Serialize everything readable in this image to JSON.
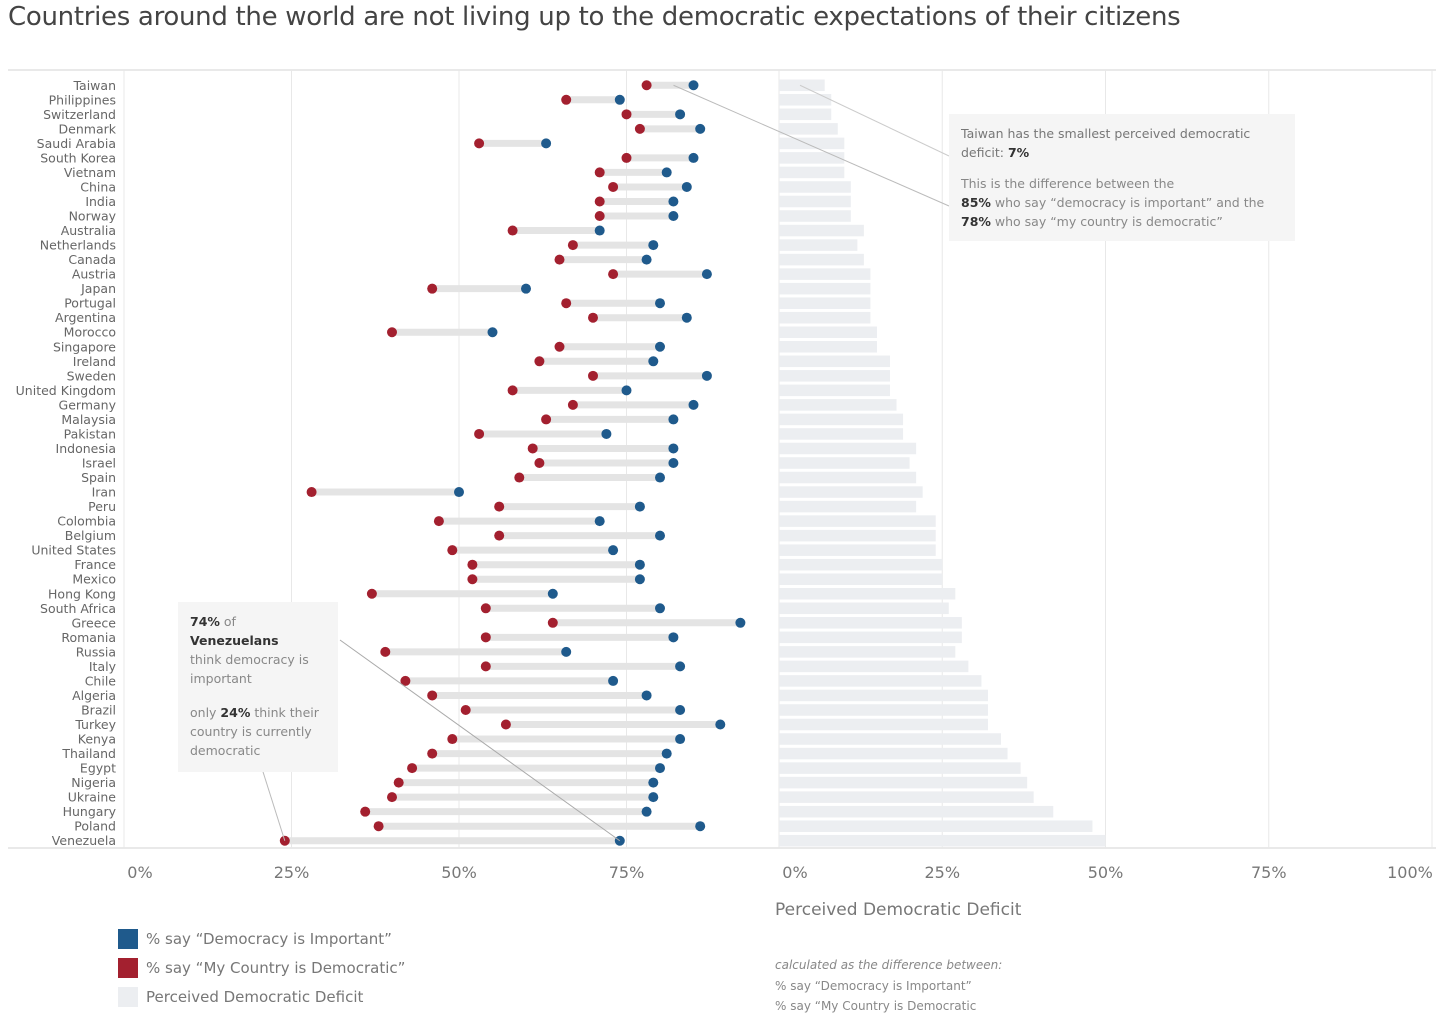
{
  "title": "Countries around the world are not living up to the democratic expectations of their citizens",
  "colors": {
    "important": "#1f5a8c",
    "democratic": "#a3202f",
    "deficit": "#eceef1",
    "connector": "#e4e4e4",
    "grid": "#e8e8e8"
  },
  "chart_data": [
    {
      "type": "dumbbell",
      "title": "",
      "xlabel": "",
      "xlim": [
        0,
        100
      ],
      "x_ticks": [
        "0%",
        "25%",
        "50%",
        "75%"
      ],
      "grid": true,
      "legend_position": "bottom-left",
      "categories": [
        "Taiwan",
        "Philippines",
        "Switzerland",
        "Denmark",
        "Saudi Arabia",
        "South Korea",
        "Vietnam",
        "China",
        "India",
        "Norway",
        "Australia",
        "Netherlands",
        "Canada",
        "Austria",
        "Japan",
        "Portugal",
        "Argentina",
        "Morocco",
        "Singapore",
        "Ireland",
        "Sweden",
        "United Kingdom",
        "Germany",
        "Malaysia",
        "Pakistan",
        "Indonesia",
        "Israel",
        "Spain",
        "Iran",
        "Peru",
        "Colombia",
        "Belgium",
        "United States",
        "France",
        "Mexico",
        "Hong Kong",
        "South Africa",
        "Greece",
        "Romania",
        "Russia",
        "Italy",
        "Chile",
        "Algeria",
        "Brazil",
        "Turkey",
        "Kenya",
        "Thailand",
        "Egypt",
        "Nigeria",
        "Ukraine",
        "Hungary",
        "Poland",
        "Venezuela"
      ],
      "series": [
        {
          "name": "% say \"Democracy is Important\"",
          "key": "important",
          "values": [
            85,
            74,
            83,
            86,
            63,
            85,
            81,
            84,
            82,
            82,
            71,
            79,
            78,
            87,
            60,
            80,
            84,
            55,
            80,
            79,
            87,
            75,
            85,
            82,
            72,
            82,
            82,
            80,
            50,
            77,
            71,
            80,
            73,
            77,
            77,
            64,
            80,
            92,
            82,
            66,
            83,
            73,
            78,
            83,
            89,
            83,
            81,
            80,
            79,
            79,
            78,
            86,
            74
          ]
        },
        {
          "name": "% say \"My Country is Democratic\"",
          "key": "democratic",
          "values": [
            78,
            66,
            75,
            77,
            53,
            75,
            71,
            73,
            71,
            71,
            58,
            67,
            65,
            73,
            46,
            66,
            70,
            40,
            65,
            62,
            70,
            58,
            67,
            63,
            53,
            61,
            62,
            59,
            28,
            56,
            47,
            56,
            49,
            52,
            52,
            37,
            54,
            64,
            54,
            39,
            54,
            42,
            46,
            51,
            57,
            49,
            46,
            43,
            41,
            40,
            36,
            38,
            24
          ]
        }
      ]
    },
    {
      "type": "bar",
      "orientation": "horizontal",
      "title": "Perceived Democratic Deficit",
      "xlim": [
        0,
        100
      ],
      "x_ticks": [
        "0%",
        "25%",
        "50%",
        "75%",
        "100%"
      ],
      "grid": true,
      "categories": [
        "Taiwan",
        "Philippines",
        "Switzerland",
        "Denmark",
        "Saudi Arabia",
        "South Korea",
        "Vietnam",
        "China",
        "India",
        "Norway",
        "Australia",
        "Netherlands",
        "Canada",
        "Austria",
        "Japan",
        "Portugal",
        "Argentina",
        "Morocco",
        "Singapore",
        "Ireland",
        "Sweden",
        "United Kingdom",
        "Germany",
        "Malaysia",
        "Pakistan",
        "Indonesia",
        "Israel",
        "Spain",
        "Iran",
        "Peru",
        "Colombia",
        "Belgium",
        "United States",
        "France",
        "Mexico",
        "Hong Kong",
        "South Africa",
        "Greece",
        "Romania",
        "Russia",
        "Italy",
        "Chile",
        "Algeria",
        "Brazil",
        "Turkey",
        "Kenya",
        "Thailand",
        "Egypt",
        "Nigeria",
        "Ukraine",
        "Hungary",
        "Poland",
        "Venezuela"
      ],
      "values": [
        7,
        8,
        8,
        9,
        10,
        10,
        10,
        11,
        11,
        11,
        13,
        12,
        13,
        14,
        14,
        14,
        14,
        15,
        15,
        17,
        17,
        17,
        18,
        19,
        19,
        21,
        20,
        21,
        22,
        21,
        24,
        24,
        24,
        25,
        25,
        27,
        26,
        28,
        28,
        27,
        29,
        31,
        32,
        32,
        32,
        34,
        35,
        37,
        38,
        39,
        42,
        48,
        50
      ]
    }
  ],
  "annotations": {
    "taiwan": {
      "line1_prefix": "Taiwan has the smallest perceived democratic deficit: ",
      "line1_value": "7%",
      "line2": "This is the difference between the",
      "line3_value": "85%",
      "line3_text": " who say “democracy is important” and the",
      "line4_value": "78%",
      "line4_text": " who say “my country is democratic”"
    },
    "venezuela": {
      "value1": "74%",
      "of": " of ",
      "country": "Venezuelans",
      "text1": "think democracy is important",
      "only": "only ",
      "value2": "24%",
      "text2": " think their country is currently democratic"
    }
  },
  "legend": [
    {
      "label": "% say “Democracy is Important”",
      "key": "important"
    },
    {
      "label": "% say “My Country is Democratic”",
      "key": "democratic"
    },
    {
      "label": "Perceived Democratic Deficit",
      "key": "deficit"
    }
  ],
  "deficit_axis_title": "Perceived Democratic Deficit",
  "calc_note": {
    "heading": "calculated as the difference between:",
    "line1": "% say “Democracy is Important”",
    "line2": "% say “My Country is Democratic"
  }
}
